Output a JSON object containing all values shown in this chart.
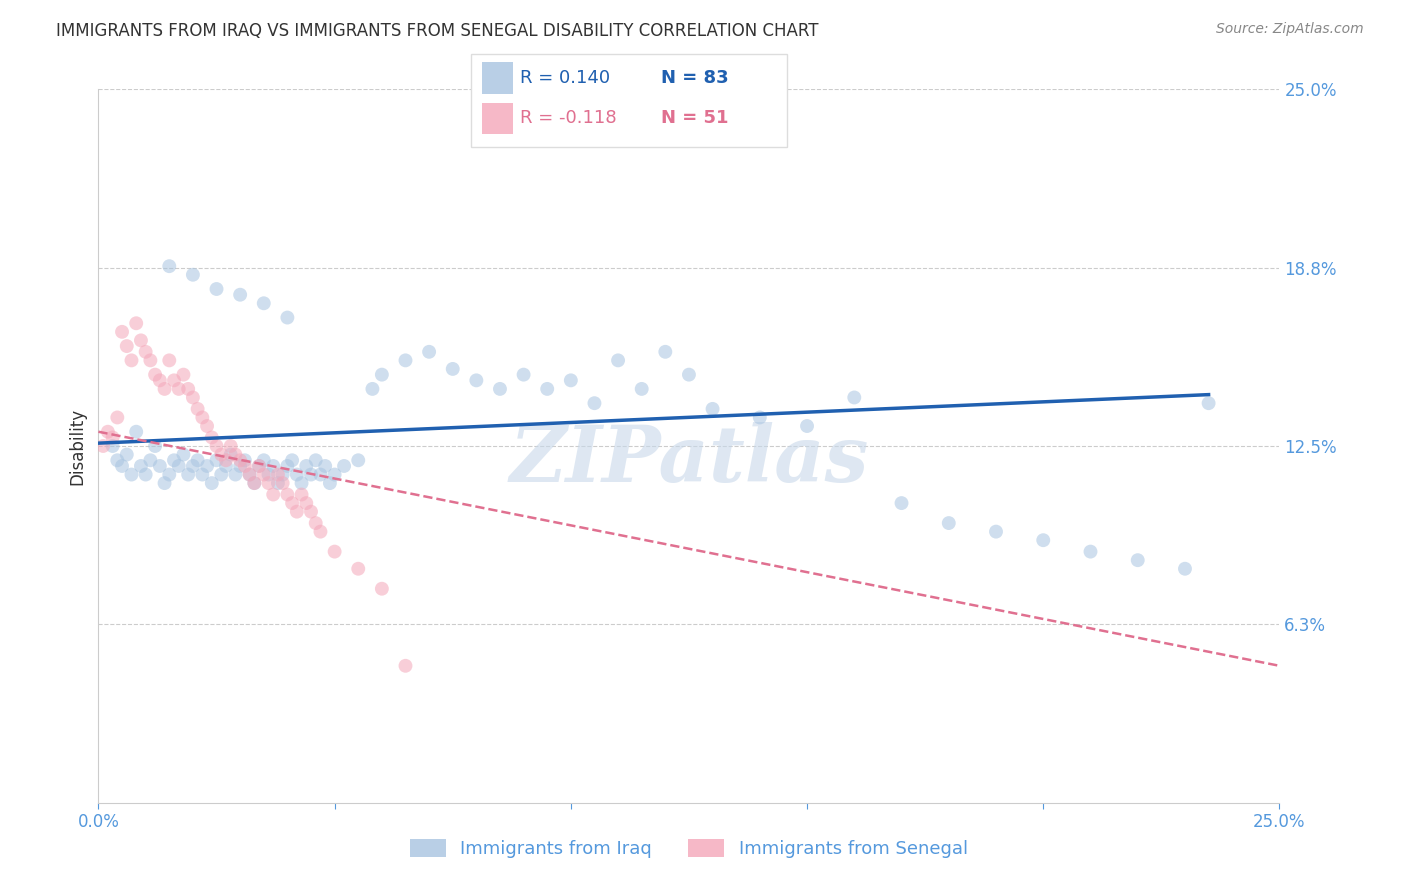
{
  "title": "IMMIGRANTS FROM IRAQ VS IMMIGRANTS FROM SENEGAL DISABILITY CORRELATION CHART",
  "source": "Source: ZipAtlas.com",
  "ylabel": "Disability",
  "watermark": "ZIPatlas",
  "xlim": [
    0.0,
    0.25
  ],
  "ylim": [
    0.0,
    0.25
  ],
  "right_ytick_pos": [
    0.25,
    0.1875,
    0.125,
    0.0625,
    0.0
  ],
  "right_ytick_labels": [
    "25.0%",
    "18.8%",
    "12.5%",
    "6.3%",
    ""
  ],
  "xtick_positions": [
    0.0,
    0.05,
    0.1,
    0.15,
    0.2,
    0.25
  ],
  "xtick_labels": [
    "0.0%",
    "",
    "",
    "",
    "",
    "25.0%"
  ],
  "legend_R1": "R = 0.140",
  "legend_N1": "N = 83",
  "legend_R2": "R = -0.118",
  "legend_N2": "N = 51",
  "iraq_color": "#a8c4e0",
  "senegal_color": "#f4a7b9",
  "iraq_line_color": "#2060b0",
  "senegal_line_color": "#e07090",
  "grid_color": "#cccccc",
  "axis_color": "#999999",
  "title_color": "#333333",
  "label_color": "#5599dd",
  "watermark_color": "#c8d8ea",
  "iraq_x": [
    0.003,
    0.004,
    0.005,
    0.006,
    0.007,
    0.008,
    0.009,
    0.01,
    0.011,
    0.012,
    0.013,
    0.014,
    0.015,
    0.016,
    0.017,
    0.018,
    0.019,
    0.02,
    0.021,
    0.022,
    0.023,
    0.024,
    0.025,
    0.026,
    0.027,
    0.028,
    0.029,
    0.03,
    0.031,
    0.032,
    0.033,
    0.034,
    0.035,
    0.036,
    0.037,
    0.038,
    0.039,
    0.04,
    0.041,
    0.042,
    0.043,
    0.044,
    0.045,
    0.046,
    0.047,
    0.048,
    0.049,
    0.05,
    0.052,
    0.055,
    0.058,
    0.06,
    0.065,
    0.07,
    0.075,
    0.08,
    0.085,
    0.09,
    0.095,
    0.1,
    0.105,
    0.11,
    0.115,
    0.12,
    0.125,
    0.13,
    0.14,
    0.15,
    0.16,
    0.17,
    0.18,
    0.19,
    0.2,
    0.21,
    0.22,
    0.23,
    0.235,
    0.015,
    0.02,
    0.025,
    0.03,
    0.035,
    0.04
  ],
  "iraq_y": [
    0.125,
    0.12,
    0.118,
    0.122,
    0.115,
    0.13,
    0.118,
    0.115,
    0.12,
    0.125,
    0.118,
    0.112,
    0.115,
    0.12,
    0.118,
    0.122,
    0.115,
    0.118,
    0.12,
    0.115,
    0.118,
    0.112,
    0.12,
    0.115,
    0.118,
    0.122,
    0.115,
    0.118,
    0.12,
    0.115,
    0.112,
    0.118,
    0.12,
    0.115,
    0.118,
    0.112,
    0.115,
    0.118,
    0.12,
    0.115,
    0.112,
    0.118,
    0.115,
    0.12,
    0.115,
    0.118,
    0.112,
    0.115,
    0.118,
    0.12,
    0.145,
    0.15,
    0.155,
    0.158,
    0.152,
    0.148,
    0.145,
    0.15,
    0.145,
    0.148,
    0.14,
    0.155,
    0.145,
    0.158,
    0.15,
    0.138,
    0.135,
    0.132,
    0.142,
    0.105,
    0.098,
    0.095,
    0.092,
    0.088,
    0.085,
    0.082,
    0.14,
    0.188,
    0.185,
    0.18,
    0.178,
    0.175,
    0.17
  ],
  "senegal_x": [
    0.001,
    0.002,
    0.003,
    0.004,
    0.005,
    0.006,
    0.007,
    0.008,
    0.009,
    0.01,
    0.011,
    0.012,
    0.013,
    0.014,
    0.015,
    0.016,
    0.017,
    0.018,
    0.019,
    0.02,
    0.021,
    0.022,
    0.023,
    0.024,
    0.025,
    0.026,
    0.027,
    0.028,
    0.029,
    0.03,
    0.031,
    0.032,
    0.033,
    0.034,
    0.035,
    0.036,
    0.037,
    0.038,
    0.039,
    0.04,
    0.041,
    0.042,
    0.043,
    0.044,
    0.045,
    0.046,
    0.047,
    0.05,
    0.055,
    0.06,
    0.065
  ],
  "senegal_y": [
    0.125,
    0.13,
    0.128,
    0.135,
    0.165,
    0.16,
    0.155,
    0.168,
    0.162,
    0.158,
    0.155,
    0.15,
    0.148,
    0.145,
    0.155,
    0.148,
    0.145,
    0.15,
    0.145,
    0.142,
    0.138,
    0.135,
    0.132,
    0.128,
    0.125,
    0.122,
    0.12,
    0.125,
    0.122,
    0.12,
    0.118,
    0.115,
    0.112,
    0.118,
    0.115,
    0.112,
    0.108,
    0.115,
    0.112,
    0.108,
    0.105,
    0.102,
    0.108,
    0.105,
    0.102,
    0.098,
    0.095,
    0.088,
    0.082,
    0.075,
    0.048
  ],
  "iraq_trend_x": [
    0.0,
    0.235
  ],
  "iraq_trend_y": [
    0.126,
    0.143
  ],
  "senegal_trend_x": [
    0.0,
    0.25
  ],
  "senegal_trend_y": [
    0.13,
    0.048
  ],
  "marker_size": 100,
  "marker_alpha": 0.55,
  "bottom_legend_labels": [
    "Immigrants from Iraq",
    "Immigrants from Senegal"
  ]
}
